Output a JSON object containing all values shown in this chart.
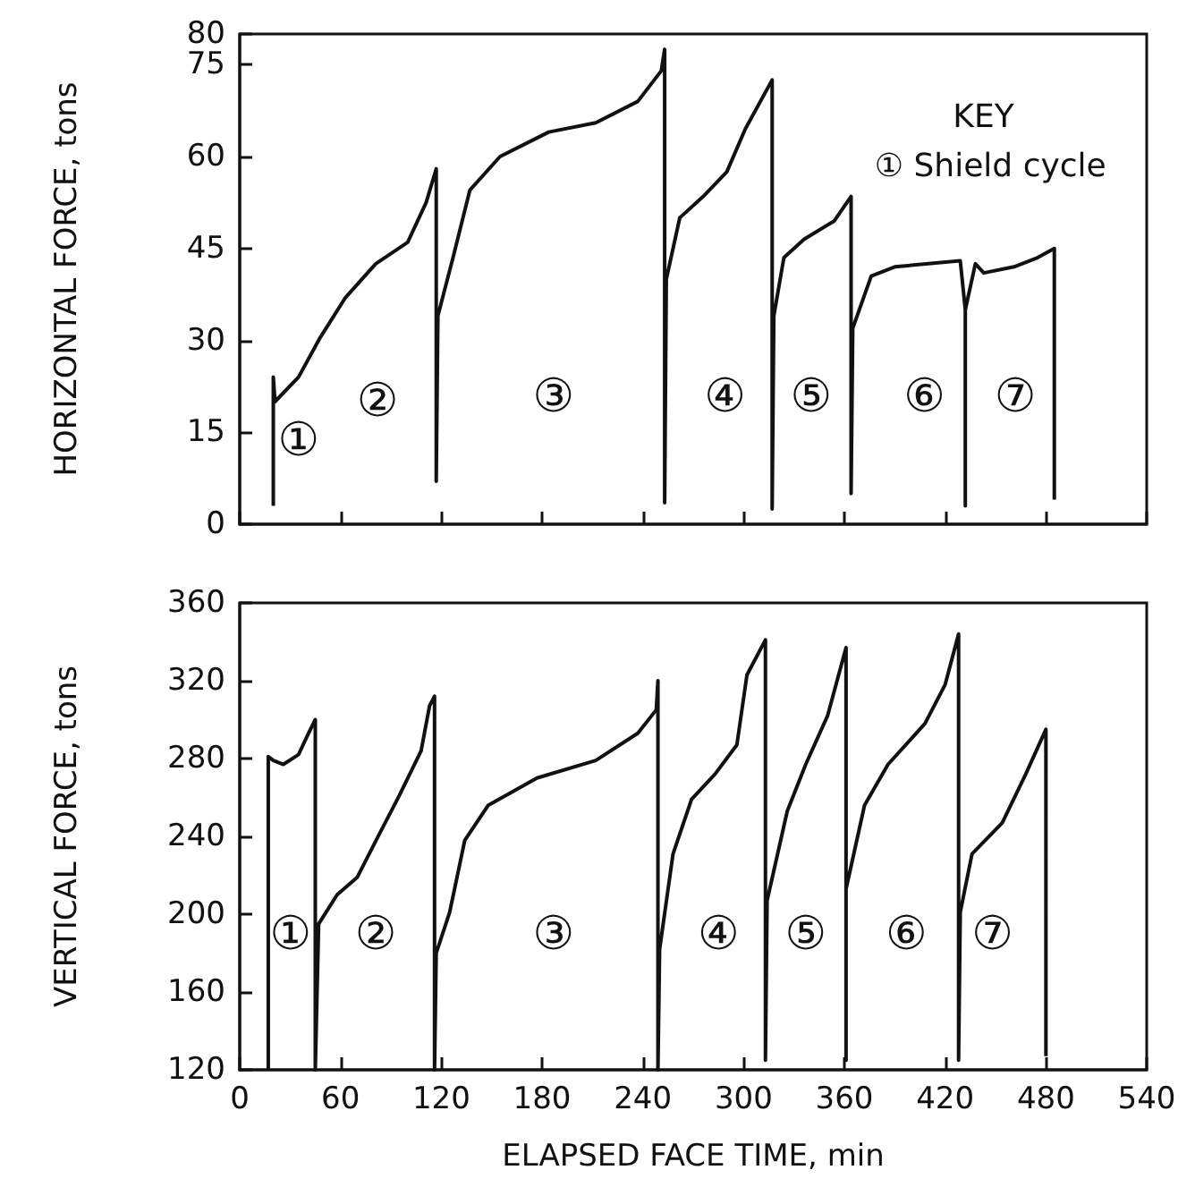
{
  "chart_data": [
    {
      "type": "line",
      "ylabel": "HORIZONTAL FORCE, tons",
      "xlim": [
        0,
        540
      ],
      "xticks": [
        0,
        60,
        120,
        180,
        240,
        300,
        360,
        420,
        480,
        540
      ],
      "ylim": [
        0,
        80
      ],
      "yticks": [
        0,
        15,
        30,
        45,
        60,
        75,
        80
      ],
      "tick_labels": "y",
      "series": [
        {
          "color": "#111111",
          "x": [
            20,
            20,
            21,
            35,
            48,
            63,
            81,
            100,
            111,
            117,
            117,
            118,
            127,
            137,
            155,
            184,
            212,
            237,
            251,
            253,
            253,
            254,
            262,
            276,
            290,
            301,
            317,
            317,
            318,
            324,
            336,
            354,
            364,
            364,
            365,
            376,
            390,
            429,
            432,
            432,
            432,
            438,
            443,
            461,
            475,
            485,
            485
          ],
          "values": [
            3,
            24,
            20,
            24,
            30.5,
            37,
            42.5,
            46,
            52.5,
            58,
            7,
            34,
            43.5,
            54.5,
            60,
            64,
            65.5,
            69,
            74,
            77.5,
            3.5,
            40,
            50,
            53.5,
            57.5,
            64.5,
            72.5,
            2.5,
            34,
            43.5,
            46.5,
            49.5,
            53.5,
            5,
            32,
            40.5,
            42,
            43,
            35,
            3,
            35,
            42.5,
            41,
            42,
            43.5,
            45,
            4
          ]
        }
      ],
      "annotations": [
        "①",
        "②",
        "③",
        "④",
        "⑤",
        "⑥",
        "⑦",
        "KEY",
        "① Shield cycle"
      ]
    },
    {
      "type": "line",
      "xlabel": "ELAPSED FACE TIME, min",
      "ylabel": "VERTICAL FORCE, tons",
      "xlim": [
        0,
        540
      ],
      "xticks": [
        0,
        60,
        120,
        180,
        240,
        300,
        360,
        420,
        480,
        540
      ],
      "ylim": [
        120,
        360
      ],
      "yticks": [
        120,
        160,
        200,
        240,
        280,
        320,
        360
      ],
      "series": [
        {
          "color": "#111111",
          "x": [
            17,
            17,
            20,
            26,
            35,
            41,
            45,
            45,
            47,
            58,
            70,
            83,
            95,
            108,
            113,
            116,
            116,
            117,
            125,
            134,
            148,
            177,
            212,
            237,
            248,
            249,
            249,
            250,
            258,
            269,
            283,
            296,
            302,
            313,
            313,
            314,
            326,
            337,
            350,
            361,
            361,
            361,
            372,
            386,
            408,
            420,
            428,
            428,
            429,
            436,
            454,
            468,
            480,
            480
          ],
          "values": [
            120,
            281,
            279,
            277,
            282,
            293,
            300,
            120,
            195,
            210,
            219,
            241,
            261,
            284,
            307,
            312,
            120,
            180,
            201,
            238,
            256,
            270,
            279,
            293,
            305,
            320,
            120,
            182,
            231,
            259,
            272,
            287,
            323,
            341,
            125,
            207,
            253,
            277,
            302,
            337,
            125,
            213,
            256,
            277,
            298,
            318,
            344,
            125,
            201,
            231,
            247,
            272,
            295,
            127
          ]
        }
      ],
      "annotations": [
        "①",
        "②",
        "③",
        "④",
        "⑤",
        "⑥",
        "⑦"
      ]
    }
  ]
}
